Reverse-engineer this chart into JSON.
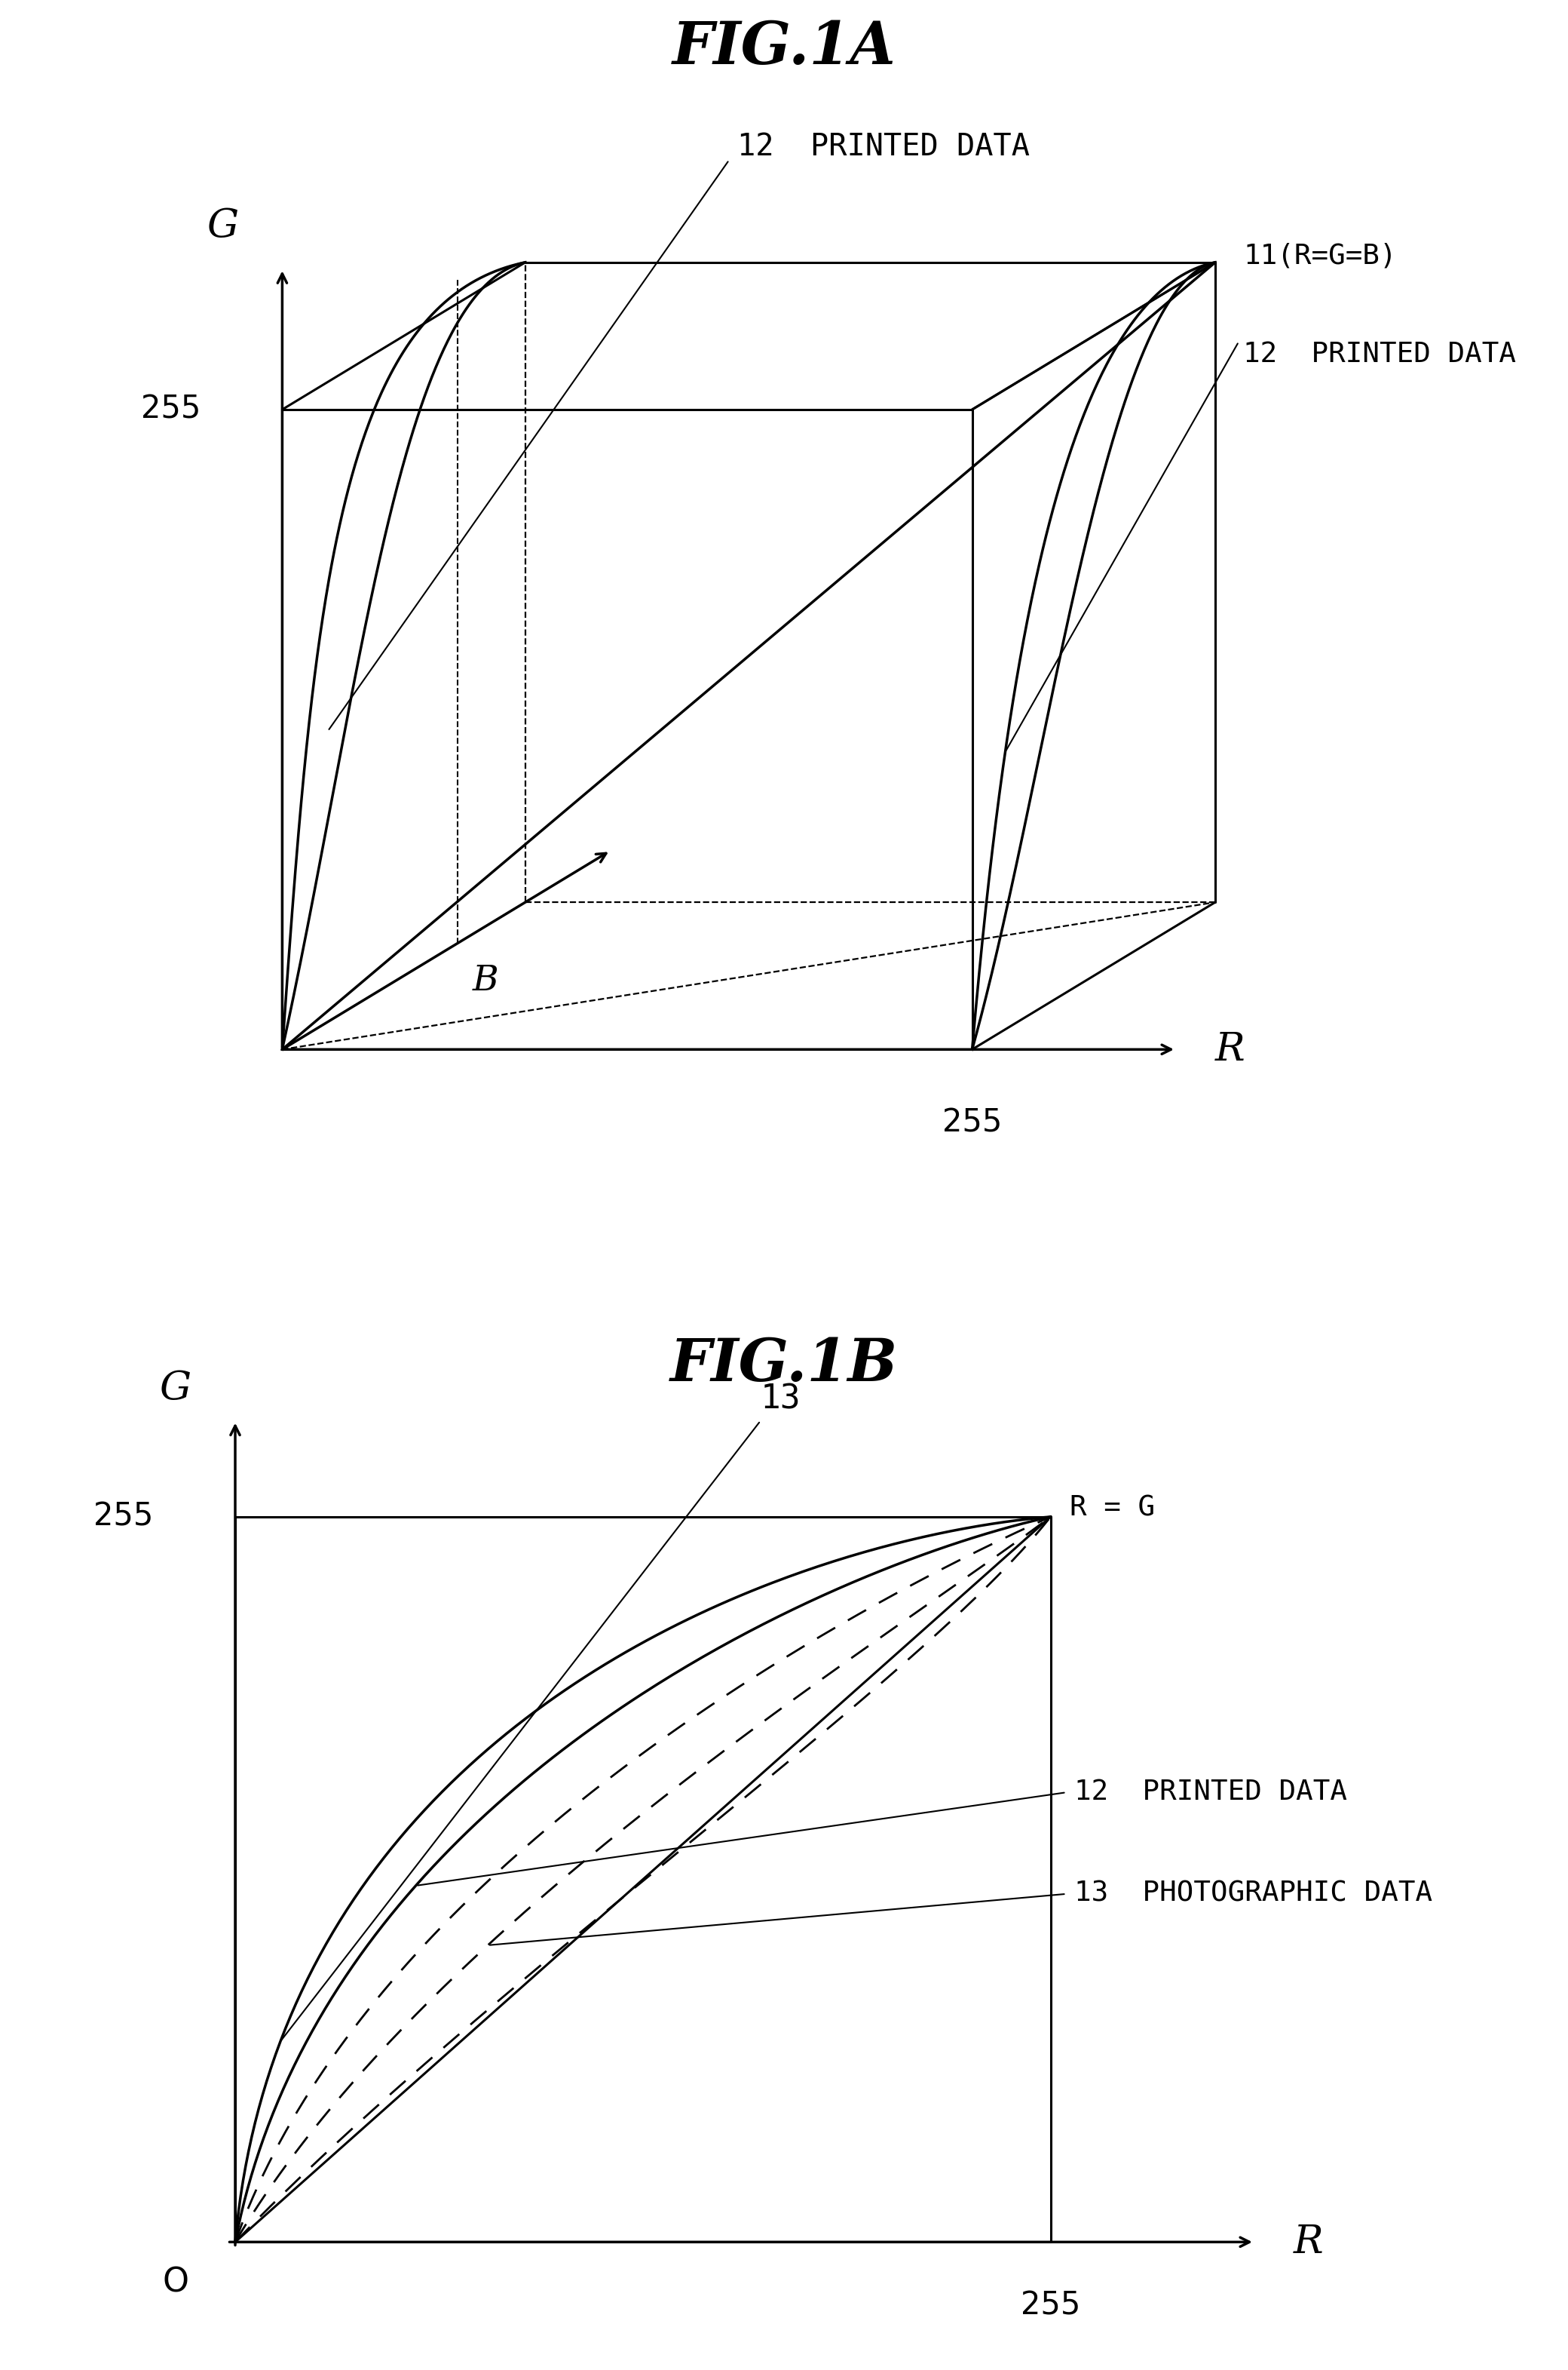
{
  "title_A": "FIG.1A",
  "title_B": "FIG.1B",
  "fig_width": 20.8,
  "fig_height": 31.42,
  "bg_color": "#ffffff",
  "label_255": "255",
  "label_R": "R",
  "label_G": "G",
  "label_B": "B",
  "label_O": "O",
  "label_11": "11(R=G=B)",
  "label_12_top": "12  PRINTED DATA",
  "label_12_right": "12  PRINTED DATA",
  "label_13": "13",
  "label_RG": "R = G",
  "label_12_b2": "12  PRINTED DATA",
  "label_13_b": "13  PHOTOGRAPHIC DATA"
}
